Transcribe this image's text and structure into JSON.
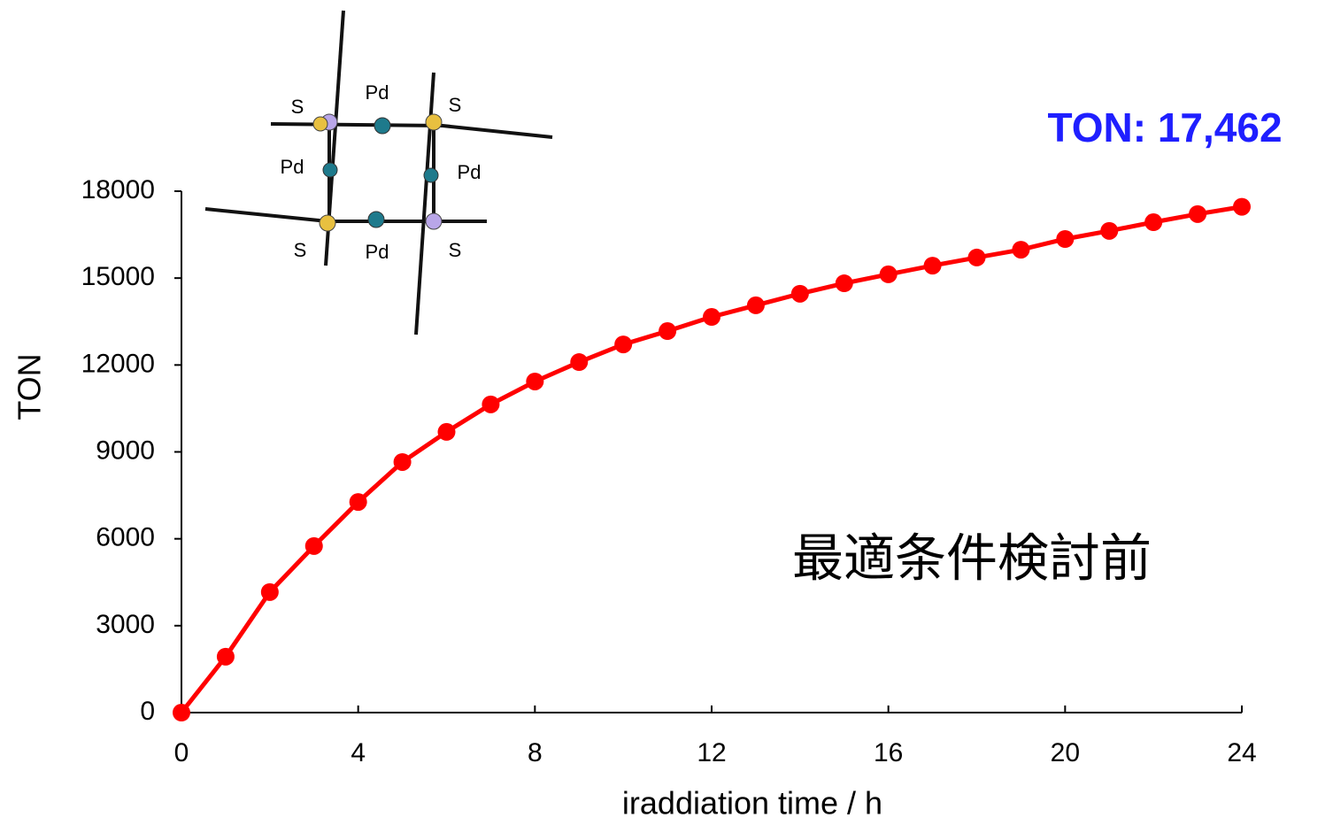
{
  "chart_data": {
    "type": "line",
    "x_label": "iraddiation time / h",
    "y_label": "TON",
    "x": [
      0,
      1,
      2,
      3,
      4,
      5,
      6,
      7,
      8,
      9,
      10,
      11,
      12,
      13,
      14,
      15,
      16,
      17,
      18,
      19,
      20,
      21,
      22,
      23,
      24
    ],
    "series": [
      {
        "color": "#ff0000",
        "values": [
          0,
          1930,
          4160,
          5750,
          7270,
          8650,
          9690,
          10640,
          11430,
          12100,
          12710,
          13170,
          13660,
          14060,
          14460,
          14820,
          15130,
          15430,
          15710,
          15980,
          16350,
          16630,
          16930,
          17210,
          17462
        ]
      }
    ],
    "xlim": [
      0,
      24
    ],
    "xticks": [
      0,
      4,
      8,
      12,
      16,
      20,
      24
    ],
    "ylim": [
      0,
      18000
    ],
    "yticks": [
      0,
      3000,
      6000,
      9000,
      12000,
      15000,
      18000
    ],
    "grid": false,
    "annotations": [
      "TON: 17,462",
      "最適条件検討前",
      "S",
      "Pd",
      "S",
      "Pd",
      "Pd",
      "S",
      "Pd",
      "S"
    ]
  }
}
